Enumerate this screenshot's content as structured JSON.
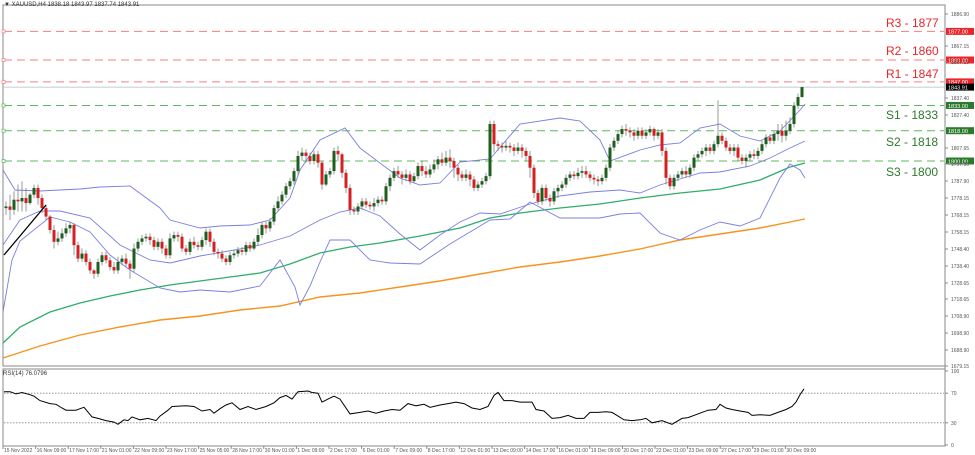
{
  "header": {
    "symbol_timeframe": "XAUUSD,H4",
    "ohlc": "1838.18 1843.97 1837.74 1843.91",
    "title_full": "XAUUSD,H4  1838.18 1843.97 1837.74 1843.91"
  },
  "levels": {
    "resistance": [
      {
        "label": "R3 - 1877",
        "price": 1877.0,
        "tag": "1877.00"
      },
      {
        "label": "R2 - 1860",
        "price": 1860.0,
        "tag": "1860.00"
      },
      {
        "label": "R1 - 1847",
        "price": 1847.0,
        "tag": "1847.00"
      }
    ],
    "support": [
      {
        "label": "S1 - 1833",
        "price": 1833.0,
        "tag": "1833.00"
      },
      {
        "label": "S2 - 1818",
        "price": 1818.0,
        "tag": "1818.00"
      },
      {
        "label": "S3 - 1800",
        "price": 1800.0,
        "tag": "1800.00"
      }
    ],
    "current_price_tag": "1843.91"
  },
  "colors": {
    "resistance": "#e8262b",
    "support": "#2c7a2c",
    "support_line": "#5cb85c",
    "bull_candle": "#1e5e1e",
    "bear_candle": "#d42020",
    "wick": "#808080",
    "bollinger": "#7b7fe0",
    "ma_green": "#2fae6a",
    "ma_orange": "#f7931e",
    "rsi_line": "#000000",
    "current_price_bg": "#000000"
  },
  "rsi": {
    "label": "RSI(14) 76.0796",
    "axis_ticks": [
      "100",
      "70",
      "30",
      "0"
    ]
  },
  "chart_data": {
    "type": "candlestick",
    "title": "XAUUSD,H4",
    "ylabel": "Price",
    "ylim": [
      1679.15,
      1886.9
    ],
    "y_ticks": [
      "1886.90",
      "1867.15",
      "1857.15",
      "1837.40",
      "1827.40",
      "1807.65",
      "1797.90",
      "1787.90",
      "1778.15",
      "1768.15",
      "1758.15",
      "1748.40",
      "1738.40",
      "1728.65",
      "1718.65",
      "1708.90",
      "1698.90",
      "1688.90",
      "1679.15"
    ],
    "x_ticks": [
      "15 Nov 2022",
      "16 Nov 09:00",
      "17 Nov 17:00",
      "21 Nov 01:00",
      "22 Nov 09:00",
      "23 Nov 17:00",
      "25 Nov 05:00",
      "28 Nov 17:00",
      "30 Nov 01:00",
      "1 Dec 09:00",
      "2 Dec 17:00",
      "6 Dec 01:00",
      "7 Dec 09:00",
      "8 Dec 17:00",
      "12 Dec 01:00",
      "13 Dec 09:00",
      "14 Dec 17:00",
      "16 Dec 01:00",
      "19 Dec 09:00",
      "20 Dec 17:00",
      "22 Dec 01:00",
      "23 Dec 09:00",
      "27 Dec 17:00",
      "29 Dec 01:00",
      "30 Dec 09:00"
    ],
    "horizontal_levels": [
      {
        "name": "R3",
        "value": 1877
      },
      {
        "name": "R2",
        "value": 1860
      },
      {
        "name": "R1",
        "value": 1847
      },
      {
        "name": "S1",
        "value": 1833
      },
      {
        "name": "S2",
        "value": 1818
      },
      {
        "name": "S3",
        "value": 1800
      }
    ],
    "last_ohlc": {
      "open": 1838.18,
      "high": 1843.97,
      "low": 1837.74,
      "close": 1843.91
    },
    "close_path_approx": [
      {
        "x": "15 Nov 2022",
        "close": 1772
      },
      {
        "x": "16 Nov 09:00",
        "close": 1776
      },
      {
        "x": "17 Nov 17:00",
        "close": 1760
      },
      {
        "x": "21 Nov 01:00",
        "close": 1742
      },
      {
        "x": "22 Nov 09:00",
        "close": 1738
      },
      {
        "x": "23 Nov 17:00",
        "close": 1752
      },
      {
        "x": "25 Nov 05:00",
        "close": 1754
      },
      {
        "x": "28 Nov 17:00",
        "close": 1748
      },
      {
        "x": "30 Nov 01:00",
        "close": 1756
      },
      {
        "x": "1 Dec 09:00",
        "close": 1803
      },
      {
        "x": "2 Dec 17:00",
        "close": 1797
      },
      {
        "x": "6 Dec 01:00",
        "close": 1770
      },
      {
        "x": "7 Dec 09:00",
        "close": 1783
      },
      {
        "x": "8 Dec 17:00",
        "close": 1790
      },
      {
        "x": "12 Dec 01:00",
        "close": 1785
      },
      {
        "x": "13 Dec 09:00",
        "close": 1810
      },
      {
        "x": "14 Dec 17:00",
        "close": 1808
      },
      {
        "x": "16 Dec 01:00",
        "close": 1781
      },
      {
        "x": "19 Dec 09:00",
        "close": 1787
      },
      {
        "x": "20 Dec 17:00",
        "close": 1817
      },
      {
        "x": "22 Dec 01:00",
        "close": 1795
      },
      {
        "x": "23 Dec 09:00",
        "close": 1798
      },
      {
        "x": "27 Dec 17:00",
        "close": 1813
      },
      {
        "x": "29 Dec 01:00",
        "close": 1813
      },
      {
        "x": "30 Dec 09:00",
        "close": 1843.91
      }
    ],
    "series": [
      {
        "name": "Bollinger Bands (upper/middle/lower)",
        "color": "#7b7fe0"
      },
      {
        "name": "Moving Average (green)",
        "color": "#2fae6a",
        "approx_start": 1695,
        "approx_end": 1801
      },
      {
        "name": "Moving Average (orange)",
        "color": "#f7931e",
        "approx_start": 1685,
        "approx_end": 1776
      }
    ],
    "indicator": {
      "name": "RSI(14)",
      "value": 76.0796,
      "ylim": [
        0,
        100
      ],
      "levels": [
        70,
        30
      ]
    },
    "grid": false,
    "legend": "none"
  }
}
